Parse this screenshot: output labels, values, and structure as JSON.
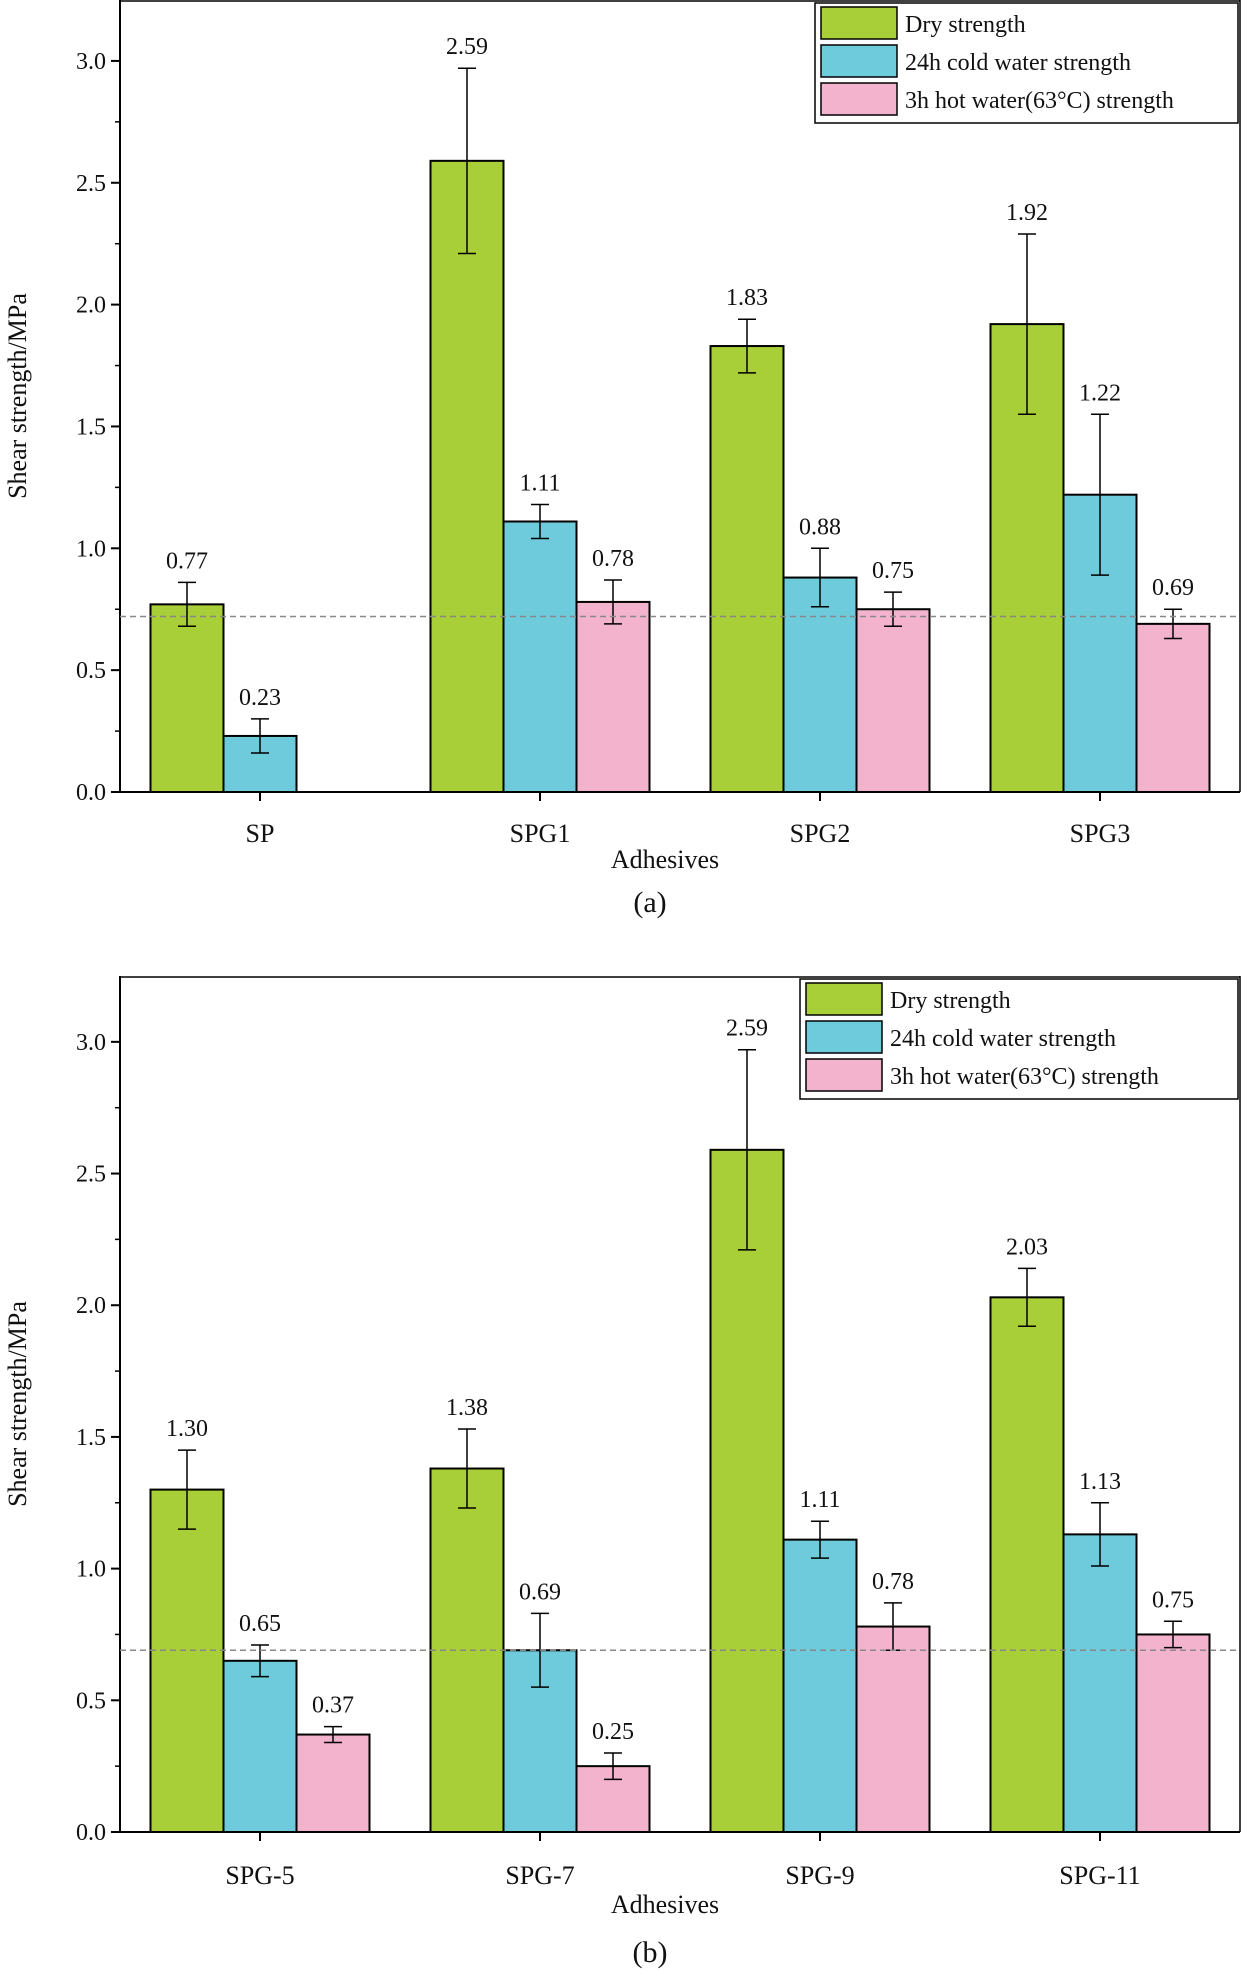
{
  "colors": {
    "dry": "#a8cf38",
    "cold": "#6ecbdc",
    "hot": "#f4b3cd",
    "reference_line": "#888888"
  },
  "legend_labels": [
    "Dry strength",
    "24h cold water strength",
    "3h hot water(63°C) strength"
  ],
  "chart_data": [
    {
      "type": "bar",
      "caption": "(a)",
      "xlabel": "Adhesives",
      "ylabel": "Shear strength/MPa",
      "ylim": [
        0,
        3.25
      ],
      "yticks": [
        0.0,
        0.5,
        1.0,
        1.5,
        2.0,
        2.5,
        3.0
      ],
      "categories": [
        "SP",
        "SPG1",
        "SPG2",
        "SPG3"
      ],
      "reference_line": 0.72,
      "legend_position": "top-right",
      "series": [
        {
          "name": "Dry strength",
          "values": [
            0.77,
            2.59,
            1.83,
            1.92
          ],
          "errors": [
            0.09,
            0.38,
            0.11,
            0.37
          ],
          "labels": [
            "0.77",
            "2.59",
            "1.83",
            "1.92"
          ]
        },
        {
          "name": "24h cold water strength",
          "values": [
            0.23,
            1.11,
            0.88,
            1.22
          ],
          "errors": [
            0.07,
            0.07,
            0.12,
            0.33
          ],
          "labels": [
            "0.23",
            "1.11",
            "0.88",
            "1.22"
          ]
        },
        {
          "name": "3h hot water(63°C) strength",
          "values": [
            null,
            0.78,
            0.75,
            0.69
          ],
          "errors": [
            null,
            0.09,
            0.07,
            0.06
          ],
          "labels": [
            "",
            "0.78",
            "0.75",
            "0.69"
          ]
        }
      ]
    },
    {
      "type": "bar",
      "caption": "(b)",
      "xlabel": "Adhesives",
      "ylabel": "Shear strength/MPa",
      "ylim": [
        0,
        3.25
      ],
      "yticks": [
        0.0,
        0.5,
        1.0,
        1.5,
        2.0,
        2.5,
        3.0
      ],
      "categories": [
        "SPG-5",
        "SPG-7",
        "SPG-9",
        "SPG-11"
      ],
      "reference_line": 0.69,
      "legend_position": "top-right",
      "series": [
        {
          "name": "Dry strength",
          "values": [
            1.3,
            1.38,
            2.59,
            2.03
          ],
          "errors": [
            0.15,
            0.15,
            0.38,
            0.11
          ],
          "labels": [
            "1.30",
            "1.38",
            "2.59",
            "2.03"
          ]
        },
        {
          "name": "24h cold water strength",
          "values": [
            0.65,
            0.69,
            1.11,
            1.13
          ],
          "errors": [
            0.06,
            0.14,
            0.07,
            0.12
          ],
          "labels": [
            "0.65",
            "0.69",
            "1.11",
            "1.13"
          ]
        },
        {
          "name": "3h hot water(63°C) strength",
          "values": [
            0.37,
            0.25,
            0.78,
            0.75
          ],
          "errors": [
            0.03,
            0.05,
            0.09,
            0.05
          ],
          "labels": [
            "0.37",
            "0.25",
            "0.78",
            "0.75"
          ]
        }
      ]
    }
  ]
}
